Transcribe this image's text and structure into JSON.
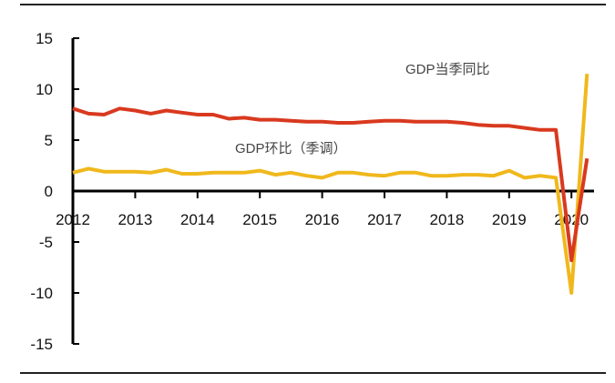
{
  "chart_data": {
    "type": "line",
    "title": "",
    "xlabel": "",
    "ylabel": "",
    "x_start": "2012Q1",
    "x_tick_labels": [
      "2012",
      "2013",
      "2014",
      "2015",
      "2016",
      "2017",
      "2018",
      "2019",
      "2020"
    ],
    "y_tick_labels": [
      "15",
      "10",
      "5",
      "0",
      "-5",
      "-10",
      "-15"
    ],
    "ylim": [
      -15,
      15
    ],
    "grid": false,
    "series": [
      {
        "name": "GDP当季同比",
        "color": "#d9391f",
        "values": [
          8.1,
          7.6,
          7.5,
          8.1,
          7.9,
          7.6,
          7.9,
          7.7,
          7.5,
          7.5,
          7.1,
          7.2,
          7.0,
          7.0,
          6.9,
          6.8,
          6.8,
          6.7,
          6.7,
          6.8,
          6.9,
          6.9,
          6.8,
          6.8,
          6.8,
          6.7,
          6.5,
          6.4,
          6.4,
          6.2,
          6.0,
          6.0,
          -6.8,
          3.2
        ]
      },
      {
        "name": "GDP环比（季调）",
        "color": "#f0b81c",
        "values": [
          1.8,
          2.2,
          1.9,
          1.9,
          1.9,
          1.8,
          2.1,
          1.7,
          1.7,
          1.8,
          1.8,
          1.8,
          2.0,
          1.6,
          1.8,
          1.5,
          1.3,
          1.8,
          1.8,
          1.6,
          1.5,
          1.8,
          1.8,
          1.5,
          1.5,
          1.6,
          1.6,
          1.5,
          2.0,
          1.3,
          1.5,
          1.3,
          -10.0,
          11.5
        ]
      }
    ]
  }
}
